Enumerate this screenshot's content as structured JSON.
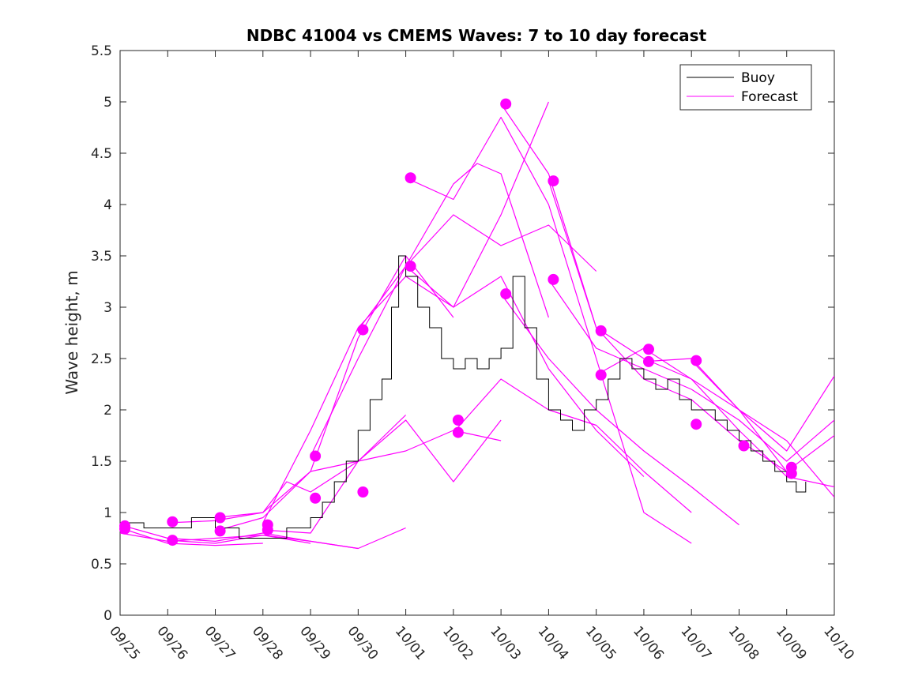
{
  "chart_data": {
    "type": "line",
    "title": "NDBC 41004 vs CMEMS Waves: 7 to 10 day forecast",
    "xlabel": "",
    "ylabel": "Wave height, m",
    "xlim": [
      0,
      15
    ],
    "ylim": [
      0,
      5.5
    ],
    "x_unit": "days since 09/25 00:00",
    "xticks": [
      "09/25",
      "09/26",
      "09/27",
      "09/28",
      "09/29",
      "09/30",
      "10/01",
      "10/02",
      "10/03",
      "10/04",
      "10/05",
      "10/06",
      "10/07",
      "10/08",
      "10/09",
      "10/10"
    ],
    "yticks": [
      "0",
      "0.5",
      "1",
      "1.5",
      "2",
      "2.5",
      "3",
      "3.5",
      "4",
      "4.5",
      "5",
      "5.5"
    ],
    "grid": false,
    "legend": {
      "position": "top-right",
      "entries": [
        {
          "label": "Buoy",
          "color": "#000000"
        },
        {
          "label": "Forecast",
          "color": "#ff00ff"
        }
      ]
    },
    "colors": {
      "buoy": "#000000",
      "forecast": "#ff00ff"
    },
    "series": [
      {
        "name": "Buoy",
        "color": "#000000",
        "x": [
          0.0,
          0.5,
          1.0,
          1.5,
          2.0,
          2.5,
          3.0,
          3.5,
          4.0,
          4.25,
          4.5,
          4.75,
          5.0,
          5.25,
          5.5,
          5.7,
          5.85,
          6.0,
          6.25,
          6.5,
          6.75,
          7.0,
          7.25,
          7.5,
          7.75,
          8.0,
          8.25,
          8.5,
          8.75,
          9.0,
          9.25,
          9.5,
          9.75,
          10.0,
          10.25,
          10.5,
          10.75,
          11.0,
          11.25,
          11.5,
          11.75,
          12.0,
          12.25,
          12.5,
          12.75,
          13.0,
          13.25,
          13.5,
          13.75,
          14.0,
          14.2,
          14.4
        ],
        "y": [
          0.9,
          0.85,
          0.85,
          0.95,
          0.85,
          0.75,
          0.75,
          0.85,
          0.95,
          1.1,
          1.3,
          1.5,
          1.8,
          2.1,
          2.3,
          3.0,
          3.5,
          3.3,
          3.0,
          2.8,
          2.5,
          2.4,
          2.5,
          2.4,
          2.5,
          2.6,
          3.3,
          2.8,
          2.3,
          2.0,
          1.9,
          1.8,
          2.0,
          2.1,
          2.3,
          2.5,
          2.4,
          2.3,
          2.2,
          2.3,
          2.1,
          2.0,
          2.0,
          1.9,
          1.8,
          1.7,
          1.6,
          1.5,
          1.4,
          1.3,
          1.2,
          1.3
        ]
      },
      {
        "name": "Forecast",
        "color": "#ff00ff",
        "segments": [
          {
            "x": [
              0.0,
              1.0,
              2.0,
              3.0
            ],
            "y": [
              0.85,
              0.7,
              0.68,
              0.7
            ]
          },
          {
            "x": [
              0.0,
              1.0,
              2.0,
              3.0,
              4.0
            ],
            "y": [
              0.8,
              0.72,
              0.75,
              0.78,
              0.7
            ]
          },
          {
            "x": [
              0.0,
              1.0,
              2.0,
              3.0,
              4.0,
              5.0
            ],
            "y": [
              0.88,
              0.75,
              0.72,
              0.8,
              0.72,
              0.65
            ]
          },
          {
            "x": [
              1.0,
              2.0,
              3.0,
              4.0,
              5.0,
              6.0
            ],
            "y": [
              0.73,
              0.7,
              0.78,
              0.72,
              0.65,
              0.85
            ]
          },
          {
            "x": [
              1.0,
              2.0,
              3.0,
              3.5,
              4.0,
              5.0,
              6.0
            ],
            "y": [
              0.9,
              0.92,
              1.0,
              1.3,
              1.2,
              1.5,
              1.95
            ]
          },
          {
            "x": [
              2.0,
              3.0,
              4.0,
              5.0,
              6.0,
              7.0
            ],
            "y": [
              0.95,
              1.0,
              1.4,
              2.7,
              3.5,
              2.9
            ]
          },
          {
            "x": [
              2.0,
              3.0,
              4.0,
              5.0,
              6.0,
              7.0,
              8.0
            ],
            "y": [
              0.82,
              0.95,
              1.4,
              1.5,
              1.6,
              1.8,
              1.7
            ]
          },
          {
            "x": [
              3.0,
              4.0,
              5.0,
              6.0,
              7.0,
              8.0,
              9.0
            ],
            "y": [
              0.9,
              1.8,
              2.8,
              3.3,
              3.0,
              3.9,
              5.0
            ]
          },
          {
            "x": [
              3.0,
              4.0,
              5.0,
              6.0,
              7.0,
              8.0
            ],
            "y": [
              0.83,
              0.8,
              1.5,
              1.9,
              1.3,
              1.9
            ]
          },
          {
            "x": [
              4.0,
              5.0,
              6.0,
              7.0,
              8.0,
              9.0,
              10.0
            ],
            "y": [
              1.55,
              2.5,
              3.4,
              3.9,
              3.6,
              3.8,
              3.35
            ]
          },
          {
            "x": [
              5.0,
              6.0,
              6.5,
              7.0,
              7.5,
              8.0,
              8.5,
              9.0
            ],
            "y": [
              2.78,
              3.4,
              3.8,
              4.2,
              4.4,
              4.3,
              3.6,
              2.9
            ]
          },
          {
            "x": [
              6.0,
              7.0,
              8.0,
              9.0,
              10.0,
              11.0
            ],
            "y": [
              3.4,
              3.0,
              3.3,
              2.4,
              1.8,
              1.35
            ]
          },
          {
            "x": [
              6.0,
              7.0,
              8.0,
              9.0,
              10.0,
              11.0,
              12.0
            ],
            "y": [
              4.26,
              4.05,
              4.85,
              4.0,
              2.5,
              1.0,
              0.7
            ]
          },
          {
            "x": [
              7.0,
              8.0,
              9.0,
              10.0,
              11.0,
              12.0
            ],
            "y": [
              1.78,
              2.3,
              2.0,
              1.85,
              1.4,
              1.0
            ]
          },
          {
            "x": [
              8.0,
              9.0,
              10.0,
              11.0,
              12.0,
              13.0
            ],
            "y": [
              3.13,
              2.5,
              2.0,
              1.6,
              1.25,
              0.88
            ]
          },
          {
            "x": [
              8.0,
              9.0,
              10.0,
              11.0,
              12.0,
              13.0,
              14.0
            ],
            "y": [
              4.98,
              4.3,
              2.8,
              2.3,
              2.1,
              1.7,
              1.4
            ]
          },
          {
            "x": [
              9.0,
              10.0,
              11.0,
              12.0,
              13.0,
              14.0,
              15.0
            ],
            "y": [
              4.23,
              2.8,
              2.5,
              2.3,
              1.8,
              1.35,
              1.25
            ]
          },
          {
            "x": [
              9.0,
              10.0,
              11.0,
              12.0,
              13.0,
              14.0,
              15.0
            ],
            "y": [
              3.27,
              2.6,
              2.4,
              2.2,
              1.9,
              1.5,
              1.9
            ]
          },
          {
            "x": [
              10.0,
              11.0,
              12.0,
              13.0,
              14.0,
              15.0
            ],
            "y": [
              2.34,
              2.6,
              2.3,
              2.0,
              1.6,
              2.33
            ]
          },
          {
            "x": [
              11.0,
              12.0,
              13.0,
              14.0,
              15.0
            ],
            "y": [
              2.47,
              2.5,
              2.0,
              1.7,
              1.15
            ]
          },
          {
            "x": [
              12.0,
              13.0,
              14.0,
              15.0
            ],
            "y": [
              2.48,
              2.0,
              1.4,
              1.75
            ]
          }
        ],
        "markers": {
          "x": [
            0.1,
            0.1,
            1.1,
            1.1,
            2.1,
            2.1,
            3.1,
            3.1,
            4.1,
            4.1,
            5.1,
            5.1,
            6.1,
            6.1,
            7.1,
            7.1,
            8.1,
            8.1,
            9.1,
            9.1,
            10.1,
            10.1,
            11.1,
            11.1,
            12.1,
            12.1,
            13.1,
            14.1,
            14.1
          ],
          "y": [
            0.87,
            0.84,
            0.91,
            0.73,
            0.95,
            0.82,
            0.88,
            0.83,
            1.55,
            1.14,
            2.78,
            1.2,
            4.26,
            3.4,
            1.9,
            1.78,
            4.98,
            3.13,
            4.23,
            3.27,
            2.77,
            2.34,
            2.59,
            2.47,
            2.48,
            1.86,
            1.65,
            1.44,
            1.38
          ]
        }
      }
    ]
  }
}
